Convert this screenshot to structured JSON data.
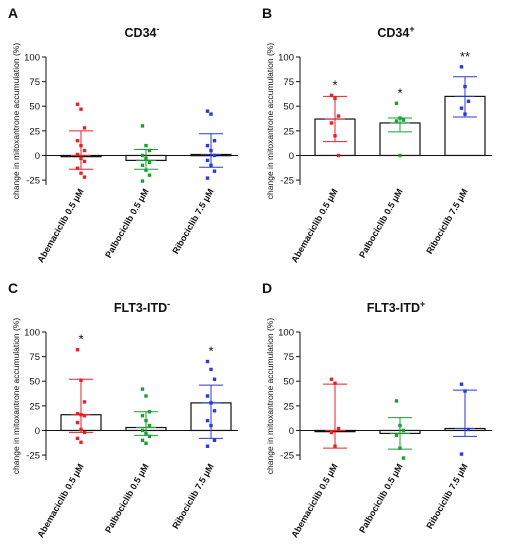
{
  "figure": {
    "panels": [
      {
        "letter": "A",
        "title_main": "CD34",
        "title_sup": "-"
      },
      {
        "letter": "B",
        "title_main": "CD34",
        "title_sup": "+"
      },
      {
        "letter": "C",
        "title_main": "FLT3-ITD",
        "title_sup": "-"
      },
      {
        "letter": "D",
        "title_main": "FLT3-ITD",
        "title_sup": "+"
      }
    ],
    "ylabel": "change in mitoxantrone accumulation (%)",
    "yticks": [
      "-25",
      "0",
      "25",
      "50",
      "75",
      "100"
    ],
    "categories": [
      "Abemaciclib 0.5 μM",
      "Palbociclib 0.5 μM",
      "Ribociclib 7.5 μM"
    ],
    "colors": [
      "#e8202a",
      "#18a030",
      "#2a3ad8"
    ]
  },
  "chart_data": [
    {
      "type": "bar",
      "title": "CD34-",
      "ylabel": "change in mitoxantrone accumulation (%)",
      "ylim": [
        -30,
        100
      ],
      "categories": [
        "Abemaciclib 0.5 μM",
        "Palbociclib 0.5 μM",
        "Ribociclib 7.5 μM"
      ],
      "values": [
        0,
        -5,
        1
      ],
      "error_low": [
        -14,
        -14,
        -12
      ],
      "error_high": [
        25,
        6,
        22
      ],
      "significance": [
        "",
        "",
        ""
      ],
      "points": [
        [
          52,
          47,
          28,
          15,
          10,
          5,
          1,
          -3,
          -6,
          -13,
          -18,
          -22
        ],
        [
          30,
          10,
          5,
          0,
          -3,
          -7,
          -10,
          -15,
          -20,
          -26
        ],
        [
          45,
          42,
          15,
          10,
          5,
          0,
          -5,
          -10,
          -16,
          -23
        ]
      ]
    },
    {
      "type": "bar",
      "title": "CD34+",
      "ylabel": "change in mitoxantrone accumulation (%)",
      "ylim": [
        -30,
        100
      ],
      "categories": [
        "Abemaciclib 0.5 μM",
        "Palbociclib 0.5 μM",
        "Ribociclib 7.5 μM"
      ],
      "values": [
        37,
        33,
        60
      ],
      "error_low": [
        14,
        24,
        39
      ],
      "error_high": [
        60,
        38,
        80
      ],
      "significance": [
        "*",
        "*",
        "**"
      ],
      "points": [
        [
          61,
          58,
          40,
          33,
          20,
          0
        ],
        [
          53,
          38,
          36,
          35,
          0
        ],
        [
          90,
          70,
          55,
          48,
          42
        ]
      ]
    },
    {
      "type": "bar",
      "title": "FLT3-ITD-",
      "ylabel": "change in mitoxantrone accumulation (%)",
      "ylim": [
        -30,
        100
      ],
      "categories": [
        "Abemaciclib 0.5 μM",
        "Palbociclib 0.5 μM",
        "Ribociclib 7.5 μM"
      ],
      "values": [
        16,
        3,
        28
      ],
      "error_low": [
        -2,
        -5,
        -8
      ],
      "error_high": [
        52,
        19,
        46
      ],
      "significance": [
        "*",
        "",
        "*"
      ],
      "points": [
        [
          82,
          51,
          29,
          17,
          16,
          15,
          8,
          1,
          -2,
          -8,
          -12
        ],
        [
          42,
          35,
          19,
          15,
          10,
          5,
          0,
          -3,
          -6,
          -10,
          -13
        ],
        [
          70,
          62,
          52,
          35,
          28,
          20,
          10,
          5,
          -10,
          -16
        ]
      ]
    },
    {
      "type": "bar",
      "title": "FLT3-ITD+",
      "ylabel": "change in mitoxantrone accumulation (%)",
      "ylim": [
        -30,
        100
      ],
      "categories": [
        "Abemaciclib 0.5 μM",
        "Palbociclib 0.5 μM",
        "Ribociclib 7.5 μM"
      ],
      "values": [
        0,
        -3,
        2
      ],
      "error_low": [
        -18,
        -19,
        -6
      ],
      "error_high": [
        47,
        13,
        41
      ],
      "significance": [
        "",
        "",
        ""
      ],
      "points": [
        [
          52,
          48,
          2,
          -2,
          -16
        ],
        [
          30,
          5,
          0,
          -5,
          -18,
          -28
        ],
        [
          47,
          40,
          1,
          -24
        ]
      ]
    }
  ]
}
